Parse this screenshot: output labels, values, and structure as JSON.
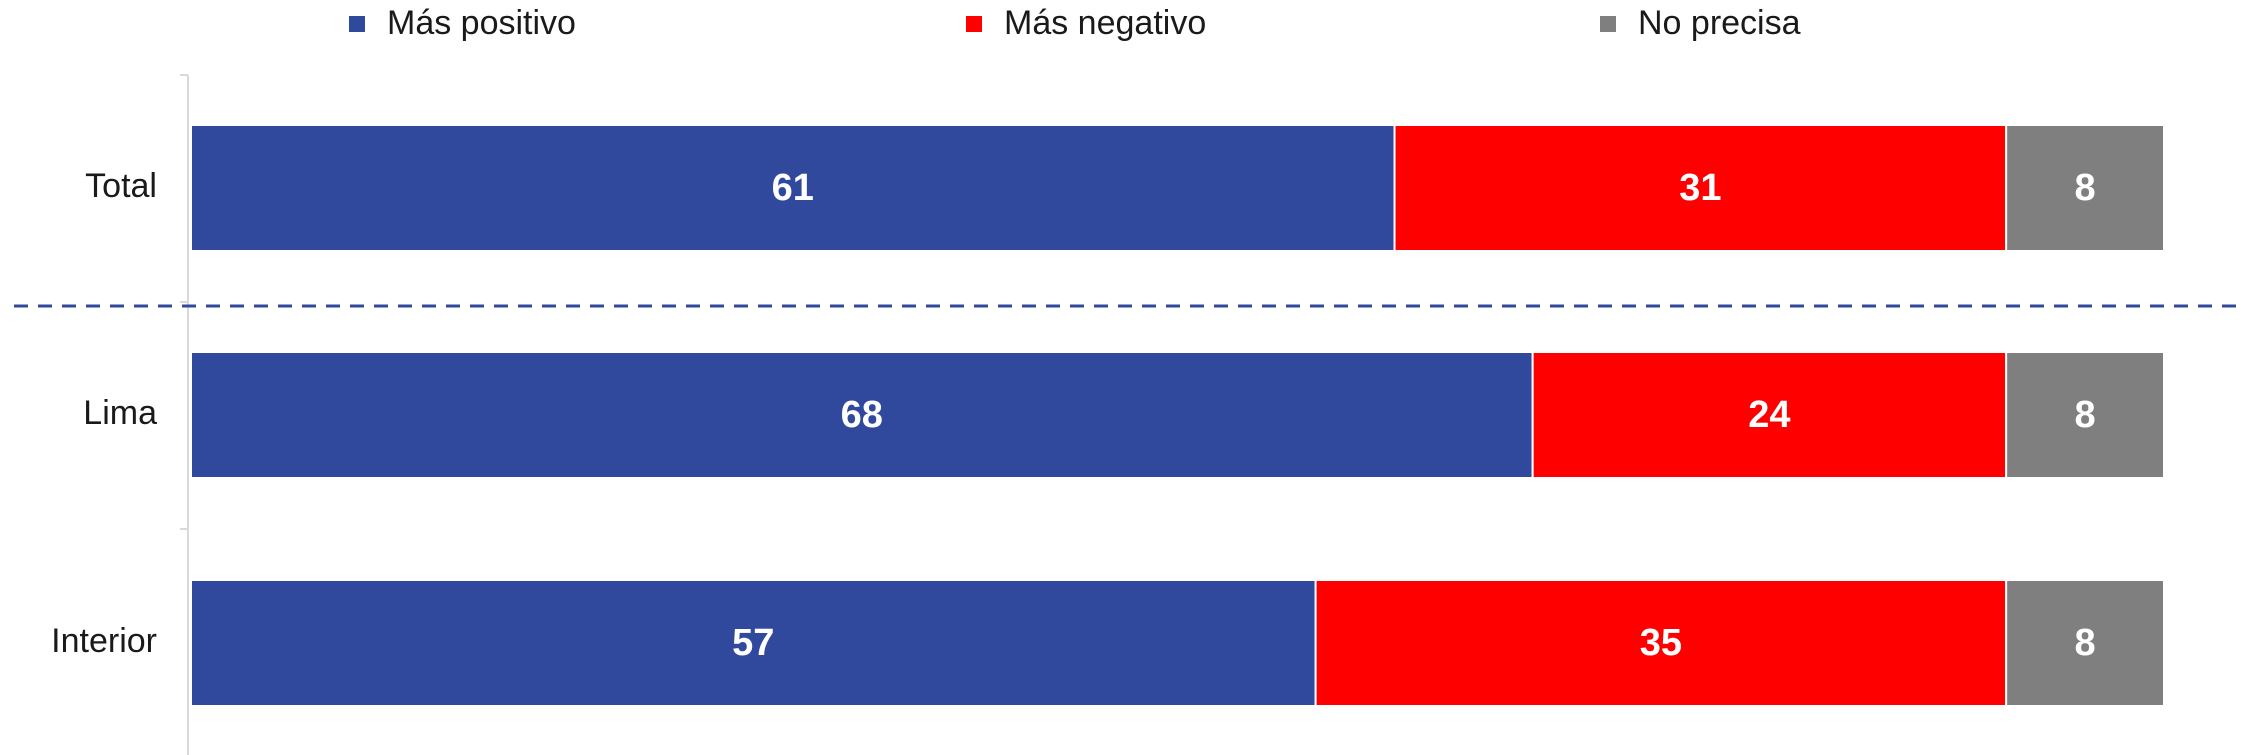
{
  "chart_data": {
    "type": "stacked-barh",
    "categories": [
      "Total",
      "Lima",
      "Interior"
    ],
    "series": [
      {
        "name": "Más positivo",
        "color": "#31499d",
        "values": [
          61,
          68,
          57
        ]
      },
      {
        "name": "Más negativo",
        "color": "#ff0000",
        "values": [
          31,
          24,
          35
        ]
      },
      {
        "name": "No precisa",
        "color": "#7f7f7f",
        "values": [
          8,
          8,
          8
        ]
      }
    ],
    "xlim": [
      0,
      100
    ],
    "legend": "top"
  }
}
